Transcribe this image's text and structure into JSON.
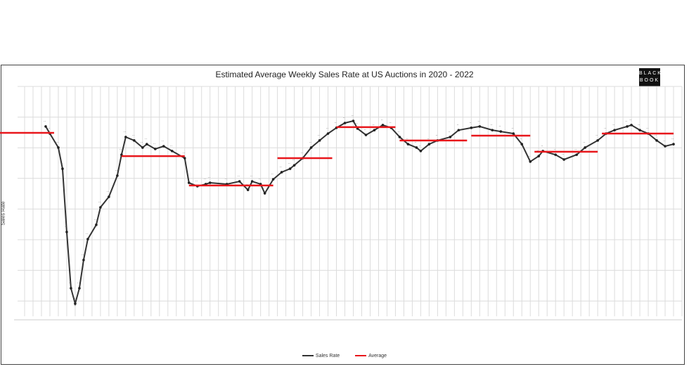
{
  "chart_data": {
    "type": "line",
    "title": "Estimated Average Weekly Sales Rate at US Auctions in 2020 - 2022",
    "xlabel": "",
    "ylabel": "Sales Rate",
    "xlim": [
      0,
      156
    ],
    "ylim": [
      0,
      100
    ],
    "grid": true,
    "legend_placement": "bottom",
    "series": [
      {
        "name": "Sales Rate",
        "color": "#333333",
        "x": [
          5,
          6,
          8,
          9,
          10,
          11,
          12,
          13,
          14,
          15,
          17,
          18,
          20,
          22,
          23,
          24,
          26,
          28,
          29,
          31,
          33,
          35,
          38,
          39,
          41,
          43,
          44,
          48,
          51,
          53,
          54,
          56,
          57,
          59,
          61,
          63,
          64,
          66,
          68,
          70,
          72,
          74,
          76,
          78,
          79,
          81,
          83,
          85,
          87,
          89,
          91,
          93,
          94,
          96,
          98,
          101,
          103,
          106,
          108,
          111,
          113,
          116,
          118,
          120,
          122,
          123,
          126,
          128,
          131,
          133,
          136,
          138,
          140,
          143,
          144,
          146,
          148,
          150,
          152,
          154
        ],
        "y": [
          82.6,
          79.5,
          73.4,
          64.2,
          36.7,
          12.2,
          5.5,
          12.2,
          24.5,
          33.6,
          39.8,
          47.4,
          52,
          61.2,
          70.3,
          78,
          76.5,
          73.4,
          74.9,
          72.8,
          74,
          71.9,
          68.8,
          58.1,
          56.6,
          57.5,
          58.1,
          57.5,
          58.7,
          55,
          58.7,
          57.5,
          53.5,
          59.6,
          62.7,
          64.2,
          65.7,
          68.8,
          73.4,
          76.5,
          79.5,
          82,
          84.1,
          85,
          81.7,
          78.9,
          81,
          83.2,
          82,
          78,
          74.9,
          73.4,
          71.9,
          74.9,
          76.5,
          78,
          81,
          82,
          82.6,
          81,
          80.4,
          79.5,
          74.9,
          67.3,
          69.7,
          71.9,
          70.3,
          68.2,
          70.3,
          73.4,
          76.5,
          79.5,
          81,
          82.6,
          83.2,
          81,
          79.5,
          76.5,
          74,
          74.9
        ]
      },
      {
        "name": "Average",
        "color": "#e8161b",
        "segments": [
          {
            "x0": 0,
            "x1": 7,
            "y": 79.8
          },
          {
            "x0": 23,
            "x1": 38,
            "y": 69.7
          },
          {
            "x0": 39,
            "x1": 59,
            "y": 56.9
          },
          {
            "x0": 60,
            "x1": 73,
            "y": 68.8
          },
          {
            "x0": 74,
            "x1": 88,
            "y": 82.3
          },
          {
            "x0": 89,
            "x1": 105,
            "y": 76.5
          },
          {
            "x0": 106,
            "x1": 120,
            "y": 78.6
          },
          {
            "x0": 121,
            "x1": 136,
            "y": 71.6
          },
          {
            "x0": 137,
            "x1": 154,
            "y": 79.5
          }
        ]
      }
    ]
  },
  "logo": {
    "line1": "BLACK",
    "line2": "BOOK"
  }
}
